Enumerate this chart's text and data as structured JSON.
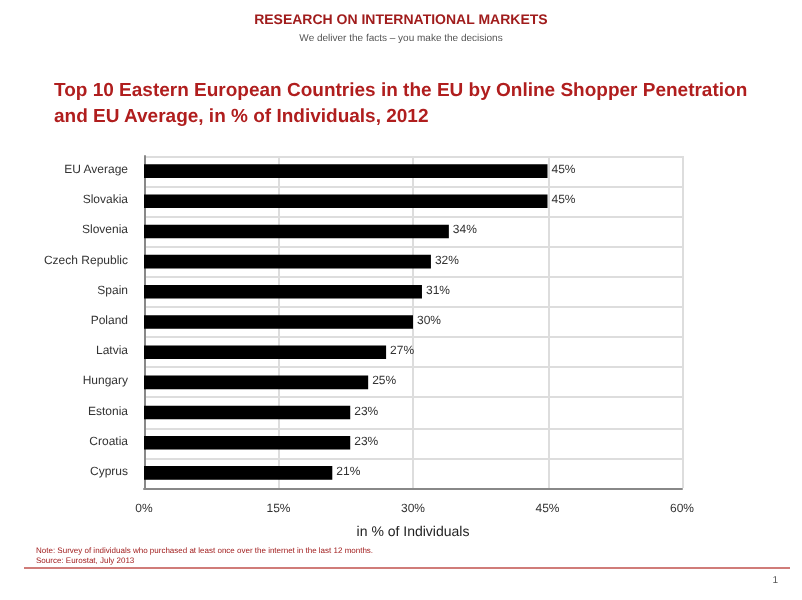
{
  "chart_data": {
    "type": "bar",
    "orientation": "horizontal",
    "title": "Top 10 Eastern European Countries in the EU by Online Shopper Penetration and EU Average, in % of Individuals, 2012",
    "xlabel": "in % of Individuals",
    "categories": [
      "EU Average",
      "Slovakia",
      "Slovenia",
      "Czech Republic",
      "Spain",
      "Poland",
      "Latvia",
      "Hungary",
      "Estonia",
      "Croatia",
      "Cyprus"
    ],
    "values": [
      45,
      45,
      34,
      32,
      31,
      30,
      27,
      25,
      23,
      23,
      21
    ],
    "value_labels": [
      "45%",
      "45%",
      "34%",
      "32%",
      "31%",
      "30%",
      "27%",
      "25%",
      "23%",
      "23%",
      "21%"
    ],
    "color": "#000000",
    "xlim": [
      0,
      60
    ],
    "xticks": [
      {
        "value": 0,
        "label": "0%"
      },
      {
        "value": 15,
        "label": "15%"
      },
      {
        "value": 30,
        "label": "30%"
      },
      {
        "value": 45,
        "label": "45%"
      },
      {
        "value": 60,
        "label": "60%"
      }
    ],
    "grid": true,
    "annotations": [
      "RESEARCH ON INTERNATIONAL MARKETS",
      "We deliver the facts – you make the decisions",
      "Note: Survey of individuals who purchased at least once over the internet in the last 12 months.",
      "Source: Eurostat, July 2013",
      "1"
    ]
  }
}
